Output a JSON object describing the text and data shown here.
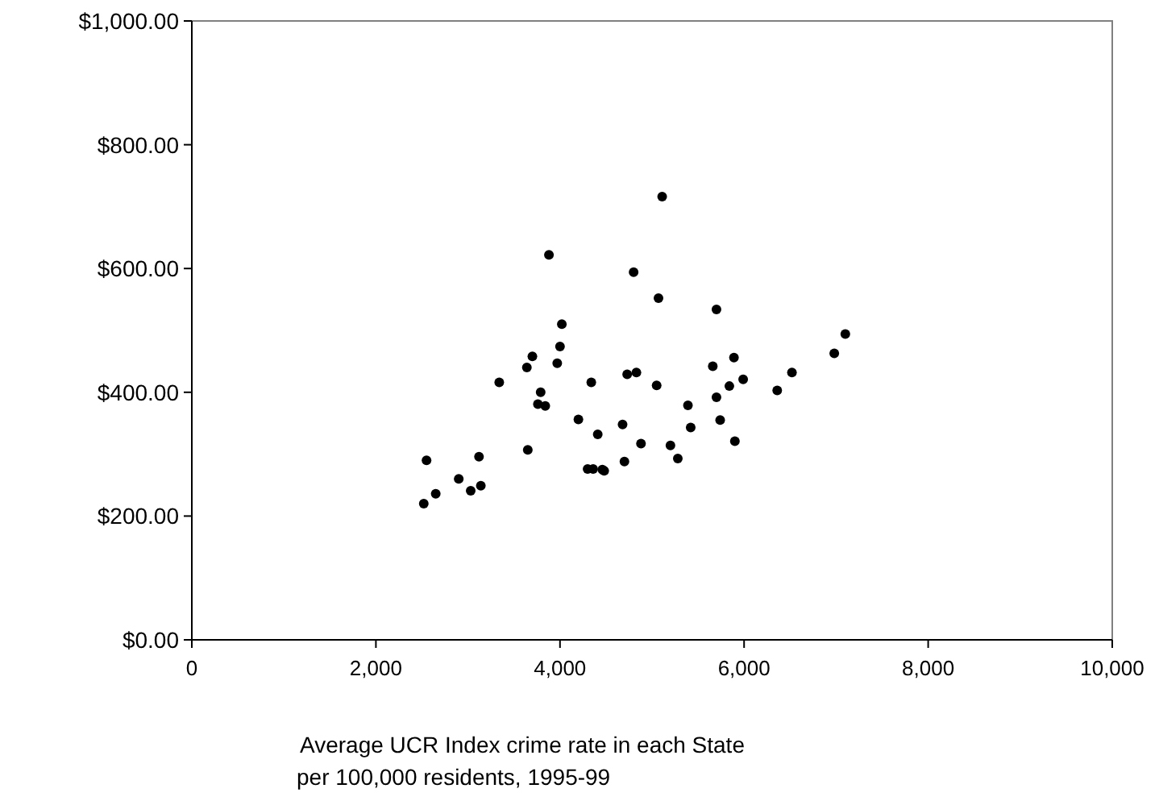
{
  "chart_data": {
    "type": "scatter",
    "xlabel": "Average UCR Index crime rate in each State\nper 100,000 residents, 1995-99",
    "xlim": [
      0,
      10000
    ],
    "xticks": [
      {
        "value": 0,
        "label": "0"
      },
      {
        "value": 2000,
        "label": "2,000"
      },
      {
        "value": 4000,
        "label": "4,000"
      },
      {
        "value": 6000,
        "label": "6,000"
      },
      {
        "value": 8000,
        "label": "8,000"
      },
      {
        "value": 10000,
        "label": "10,000"
      }
    ],
    "ylim": [
      0,
      1000
    ],
    "yticks": [
      {
        "value": 0,
        "label": "$0.00"
      },
      {
        "value": 200,
        "label": "$200.00"
      },
      {
        "value": 400,
        "label": "$400.00"
      },
      {
        "value": 600,
        "label": "$600.00"
      },
      {
        "value": 800,
        "label": "$800.00"
      },
      {
        "value": 1000,
        "label": "$1,000.00"
      }
    ],
    "grid": false,
    "marker": "circle",
    "series": [
      {
        "color": "#000000",
        "x": [
          2520,
          2550,
          2650,
          2900,
          3030,
          3120,
          3140,
          3340,
          3640,
          3650,
          3700,
          3760,
          3790,
          3840,
          3880,
          3970,
          4000,
          4020,
          4200,
          4300,
          4360,
          4340,
          4410,
          4460,
          4480,
          4680,
          4700,
          4730,
          4800,
          4830,
          4880,
          5050,
          5070,
          5110,
          5200,
          5280,
          5390,
          5420,
          5660,
          5700,
          5700,
          5740,
          5840,
          5890,
          5900,
          5990,
          6360,
          6520,
          6980,
          7100
        ],
        "values": [
          220,
          290,
          236,
          260,
          241,
          296,
          249,
          416,
          440,
          307,
          458,
          381,
          400,
          378,
          622,
          447,
          474,
          510,
          356,
          276,
          276,
          416,
          332,
          275,
          273,
          348,
          288,
          429,
          594,
          432,
          317,
          411,
          552,
          716,
          314,
          293,
          379,
          343,
          442,
          534,
          392,
          355,
          410,
          456,
          321,
          421,
          403,
          432,
          463,
          494
        ]
      }
    ]
  }
}
